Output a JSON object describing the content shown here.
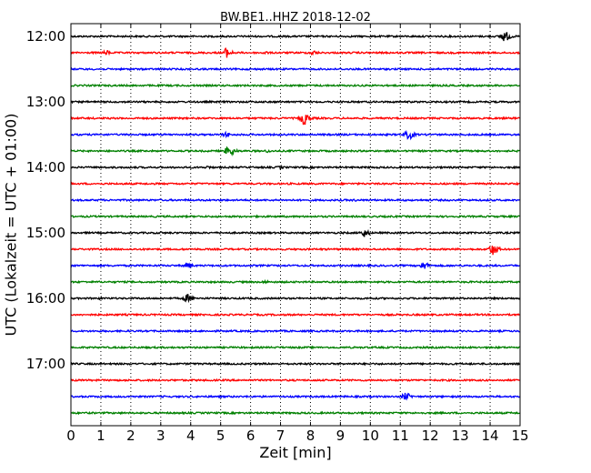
{
  "chart_data": {
    "type": "line",
    "title": "BW.BE1..HHZ 2018-12-02",
    "xlabel": "Zeit  [min]",
    "ylabel": "UTC (Lokalzeit = UTC + 01:00)",
    "xlim": [
      0,
      15
    ],
    "xticks": [
      "0",
      "1",
      "2",
      "3",
      "4",
      "5",
      "6",
      "7",
      "8",
      "9",
      "10",
      "11",
      "12",
      "13",
      "14",
      "15"
    ],
    "yticks": [
      "12:00",
      "13:00",
      "14:00",
      "15:00",
      "16:00",
      "17:00"
    ],
    "grid": "vertical dotted",
    "trace_colors": [
      "#000000",
      "#ff0000",
      "#0000ff",
      "#008000"
    ],
    "traces": [
      {
        "start": "12:00",
        "color": "#000000",
        "events": [
          {
            "x": 14.5,
            "amp": 7
          }
        ]
      },
      {
        "start": "12:15",
        "color": "#ff0000",
        "events": [
          {
            "x": 1.2,
            "amp": 3
          },
          {
            "x": 5.2,
            "amp": 6
          },
          {
            "x": 6.5,
            "amp": 2
          },
          {
            "x": 8.1,
            "amp": 3
          }
        ]
      },
      {
        "start": "12:30",
        "color": "#0000ff",
        "events": []
      },
      {
        "start": "12:45",
        "color": "#008000",
        "events": []
      },
      {
        "start": "13:00",
        "color": "#000000",
        "events": []
      },
      {
        "start": "13:15",
        "color": "#ff0000",
        "events": [
          {
            "x": 7.8,
            "amp": 8
          }
        ]
      },
      {
        "start": "13:30",
        "color": "#0000ff",
        "events": [
          {
            "x": 5.2,
            "amp": 3
          },
          {
            "x": 11.3,
            "amp": 6
          }
        ]
      },
      {
        "start": "13:45",
        "color": "#008000",
        "events": [
          {
            "x": 5.3,
            "amp": 7
          },
          {
            "x": 6.6,
            "amp": 2
          }
        ]
      },
      {
        "start": "14:00",
        "color": "#000000",
        "events": [
          {
            "x": 4.6,
            "amp": 2
          },
          {
            "x": 7.0,
            "amp": 2
          }
        ]
      },
      {
        "start": "14:15",
        "color": "#ff0000",
        "events": []
      },
      {
        "start": "14:30",
        "color": "#0000ff",
        "events": [
          {
            "x": 9.5,
            "amp": 1.5
          }
        ]
      },
      {
        "start": "14:45",
        "color": "#008000",
        "events": []
      },
      {
        "start": "15:00",
        "color": "#000000",
        "events": [
          {
            "x": 9.8,
            "amp": 5
          },
          {
            "x": 3.0,
            "amp": 1.5
          }
        ]
      },
      {
        "start": "15:15",
        "color": "#ff0000",
        "events": [
          {
            "x": 14.1,
            "amp": 7
          }
        ]
      },
      {
        "start": "15:30",
        "color": "#0000ff",
        "events": [
          {
            "x": 3.9,
            "amp": 4
          },
          {
            "x": 11.8,
            "amp": 5
          }
        ]
      },
      {
        "start": "15:45",
        "color": "#008000",
        "events": [
          {
            "x": 6.5,
            "amp": 2
          }
        ]
      },
      {
        "start": "16:00",
        "color": "#000000",
        "events": [
          {
            "x": 3.9,
            "amp": 5
          },
          {
            "x": 1.0,
            "amp": 1.5
          }
        ]
      },
      {
        "start": "16:15",
        "color": "#ff0000",
        "events": []
      },
      {
        "start": "16:30",
        "color": "#0000ff",
        "events": []
      },
      {
        "start": "16:45",
        "color": "#008000",
        "events": []
      },
      {
        "start": "17:00",
        "color": "#000000",
        "events": []
      },
      {
        "start": "17:15",
        "color": "#ff0000",
        "events": []
      },
      {
        "start": "17:30",
        "color": "#0000ff",
        "events": [
          {
            "x": 11.2,
            "amp": 5
          }
        ]
      },
      {
        "start": "17:45",
        "color": "#008000",
        "events": []
      }
    ]
  }
}
